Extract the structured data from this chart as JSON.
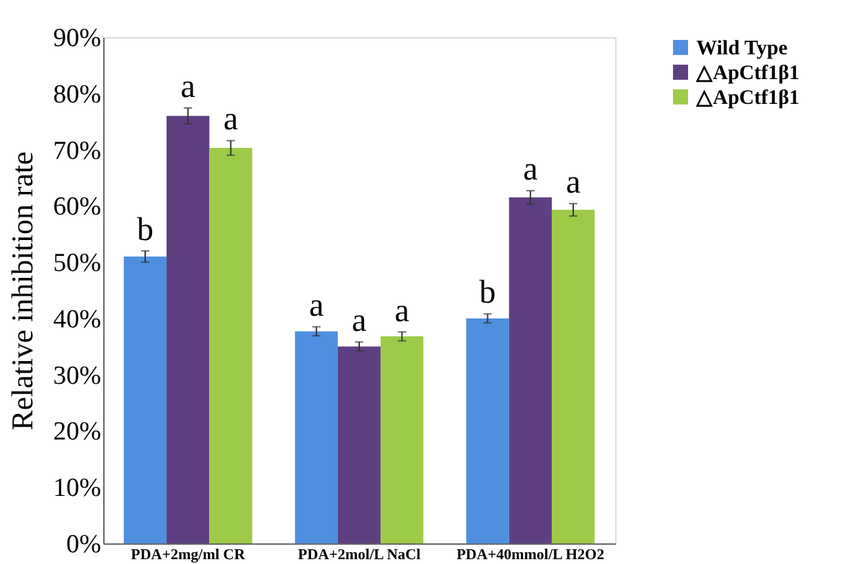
{
  "chart_data": {
    "type": "bar",
    "ylabel": "Relative inhibition rate",
    "categories": [
      "PDA+2mg/ml CR",
      "PDA+2mol/L NaCl",
      "PDA+40mmol/L H2O2"
    ],
    "series": [
      {
        "name": "Wild Type",
        "color": "#4f8fe0",
        "values": [
          51,
          37.7,
          40
        ],
        "errors": [
          1,
          0.8,
          0.8
        ]
      },
      {
        "name": "△ApCtf1β1",
        "color": "#5e4082",
        "values": [
          76,
          35,
          61.5
        ],
        "errors": [
          1.4,
          0.8,
          1.2
        ]
      },
      {
        "name": "△ApCtf1β1",
        "color": "#9dcb48",
        "values": [
          70.3,
          36.8,
          59.3
        ],
        "errors": [
          1.3,
          0.8,
          1.1
        ]
      }
    ],
    "ylim": [
      0,
      90
    ],
    "yticks": [
      {
        "value": 0,
        "label": "0%"
      },
      {
        "value": 10,
        "label": "10%"
      },
      {
        "value": 20,
        "label": "20%"
      },
      {
        "value": 30,
        "label": "30%"
      },
      {
        "value": 40,
        "label": "40%"
      },
      {
        "value": 50,
        "label": "50%"
      },
      {
        "value": 60,
        "label": "60%"
      },
      {
        "value": 70,
        "label": "70%"
      },
      {
        "value": 80,
        "label": "80%"
      },
      {
        "value": 90,
        "label": "90%"
      }
    ],
    "annotations": [
      "b",
      "a",
      "a",
      "a",
      "a",
      "a",
      "b",
      "a",
      "a"
    ],
    "grid": false,
    "legend": "right"
  }
}
